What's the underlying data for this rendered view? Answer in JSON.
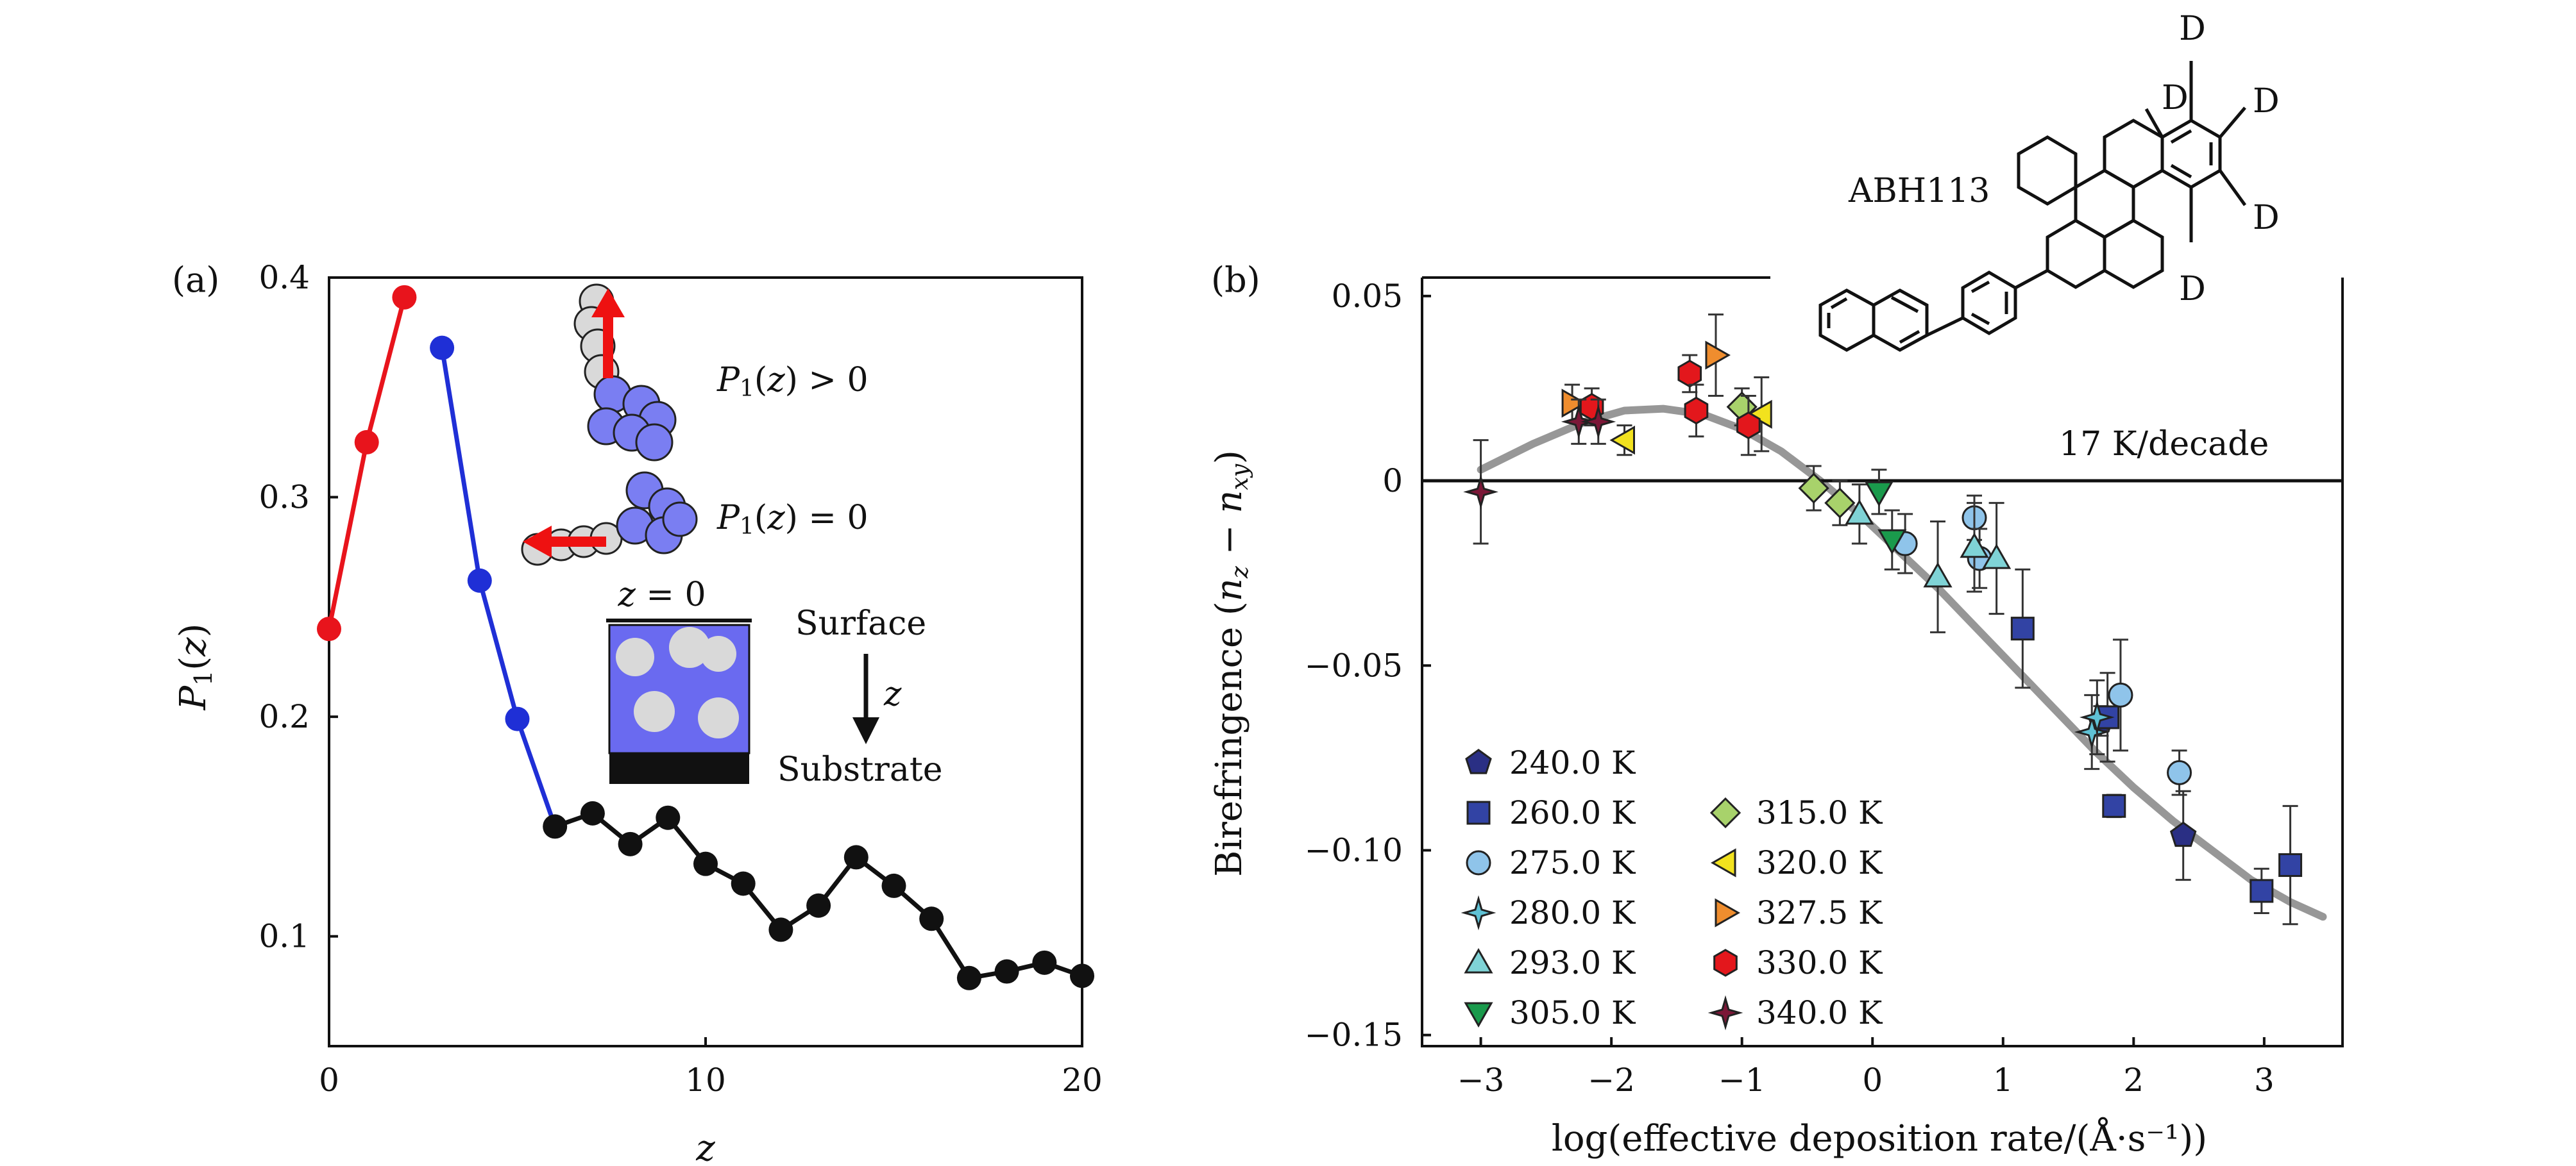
{
  "colors": {
    "red": "#e8141c",
    "blue": "#1f2fd6",
    "black": "#111111",
    "bead_blue": "#7a7ef2",
    "bead_gray": "#d9d9d9",
    "arrow": "#ee1111",
    "fit": "#8c8c8c"
  },
  "chart_data": [
    {
      "panel": "(a)",
      "type": "line",
      "xlabel": "z",
      "ylabel": "P1(z)",
      "xlim": [
        0,
        20
      ],
      "ylim": [
        0.05,
        0.4
      ],
      "xticks": [
        "0",
        "10",
        "20"
      ],
      "yticks": [
        "0.1",
        "0.2",
        "0.3",
        "0.4"
      ],
      "series": [
        {
          "name": "red",
          "color": "red",
          "x": [
            0,
            1,
            2
          ],
          "y": [
            0.24,
            0.325,
            0.391
          ]
        },
        {
          "name": "blue",
          "color": "blue",
          "x": [
            3,
            4,
            5
          ],
          "y": [
            0.368,
            0.262,
            0.199
          ],
          "line_to": [
            6,
            0.15
          ]
        },
        {
          "name": "black",
          "color": "black",
          "x": [
            6,
            7,
            8,
            9,
            10,
            11,
            12,
            13,
            14,
            15,
            16,
            17,
            18,
            19,
            20
          ],
          "y": [
            0.15,
            0.156,
            0.142,
            0.154,
            0.133,
            0.124,
            0.103,
            0.114,
            0.136,
            0.123,
            0.108,
            0.081,
            0.084,
            0.088,
            0.082
          ]
        }
      ],
      "annotations": {
        "p_pos": "P1(z) > 0",
        "p_zero": "P1(z) = 0",
        "z0": "z = 0",
        "surface": "Surface",
        "z_arrow": "z",
        "substrate": "Substrate"
      }
    },
    {
      "panel": "(b)",
      "type": "scatter",
      "xlabel": "log(effective deposition rate/(Å·s⁻¹))",
      "ylabel": "Birefringence (nz − nxy)",
      "xlim": [
        -3.45,
        3.6
      ],
      "ylim": [
        -0.153,
        0.055
      ],
      "xticks": [
        -3,
        -2,
        -1,
        0,
        1,
        2,
        3
      ],
      "xtick_labels": [
        "−3",
        "−2",
        "−1",
        "0",
        "1",
        "2",
        "3"
      ],
      "yticks": [
        0.05,
        0,
        -0.05,
        -0.1,
        -0.15
      ],
      "ytick_labels": [
        "0.05",
        "0",
        "−0.05",
        "−0.10",
        "−0.15"
      ],
      "fit_annotation": "17 K/decade",
      "molecule": {
        "name": "ABH113",
        "atoms": [
          "D",
          "D",
          "D",
          "D",
          "D"
        ]
      },
      "series": [
        {
          "name": "240.0 K",
          "marker": "pentagon",
          "color": "#2a2f84",
          "points": [
            [
              1.75,
              -0.065,
              0.004
            ],
            [
              2.38,
              -0.096,
              0.012
            ]
          ]
        },
        {
          "name": "260.0 K",
          "marker": "square",
          "color": "#3243a4",
          "points": [
            [
              1.15,
              -0.04,
              0.016
            ],
            [
              1.8,
              -0.064,
              0.012
            ],
            [
              1.85,
              -0.088,
              0.003
            ],
            [
              2.98,
              -0.111,
              0.006
            ],
            [
              3.2,
              -0.104,
              0.016
            ]
          ]
        },
        {
          "name": "275.0 K",
          "marker": "circle",
          "color": "#8fc4ea",
          "points": [
            [
              0.25,
              -0.017,
              0.008
            ],
            [
              0.78,
              -0.01,
              0.006
            ],
            [
              0.82,
              -0.021,
              0.008
            ],
            [
              1.9,
              -0.058,
              0.015
            ],
            [
              2.35,
              -0.079,
              0.006
            ]
          ]
        },
        {
          "name": "280.0 K",
          "marker": "star4",
          "color": "#5fc2d5",
          "points": [
            [
              1.68,
              -0.068,
              0.01
            ],
            [
              1.72,
              -0.064,
              0.01
            ]
          ]
        },
        {
          "name": "293.0 K",
          "marker": "triangle-up",
          "color": "#7fd3d6",
          "points": [
            [
              -0.1,
              -0.009,
              0.008
            ],
            [
              0.5,
              -0.026,
              0.015
            ],
            [
              0.78,
              -0.018,
              0.012
            ],
            [
              0.95,
              -0.021,
              0.015
            ]
          ]
        },
        {
          "name": "305.0 K",
          "marker": "triangle-down",
          "color": "#1a9a4c",
          "points": [
            [
              0.05,
              -0.003,
              0.006
            ],
            [
              0.15,
              -0.016,
              0.008
            ]
          ]
        },
        {
          "name": "315.0 K",
          "marker": "diamond",
          "color": "#a8d26b",
          "points": [
            [
              -1.0,
              0.02,
              0.005
            ],
            [
              -0.45,
              -0.002,
              0.006
            ],
            [
              -0.25,
              -0.006,
              0.006
            ]
          ]
        },
        {
          "name": "320.0 K",
          "marker": "triangle-left",
          "color": "#f2e21e",
          "points": [
            [
              -1.9,
              0.011,
              0.004
            ],
            [
              -0.85,
              0.018,
              0.01
            ]
          ]
        },
        {
          "name": "327.5 K",
          "marker": "triangle-right",
          "color": "#ef8d2e",
          "points": [
            [
              -2.3,
              0.021,
              0.005
            ],
            [
              -1.2,
              0.034,
              0.011
            ]
          ]
        },
        {
          "name": "330.0 K",
          "marker": "hexagon",
          "color": "#e3171c",
          "points": [
            [
              -2.15,
              0.02,
              0.005
            ],
            [
              -1.4,
              0.029,
              0.005
            ],
            [
              -1.35,
              0.019,
              0.007
            ],
            [
              -0.95,
              0.015,
              0.008
            ]
          ]
        },
        {
          "name": "340.0 K",
          "marker": "star4",
          "color": "#7b1737",
          "points": [
            [
              -3.0,
              -0.003,
              0.014
            ],
            [
              -2.25,
              0.016,
              0.006
            ],
            [
              -2.1,
              0.016,
              0.006
            ]
          ]
        }
      ],
      "fit_curve": {
        "x": [
          -3.0,
          -2.6,
          -2.2,
          -1.9,
          -1.6,
          -1.3,
          -1.0,
          -0.7,
          -0.4,
          -0.1,
          0.2,
          0.5,
          0.8,
          1.1,
          1.4,
          1.7,
          2.0,
          2.3,
          2.6,
          2.9,
          3.2,
          3.45
        ],
        "y": [
          0.003,
          0.01,
          0.016,
          0.019,
          0.0195,
          0.018,
          0.014,
          0.008,
          0.0,
          -0.009,
          -0.019,
          -0.029,
          -0.04,
          -0.051,
          -0.062,
          -0.073,
          -0.083,
          -0.092,
          -0.1,
          -0.108,
          -0.114,
          -0.118
        ]
      }
    }
  ]
}
